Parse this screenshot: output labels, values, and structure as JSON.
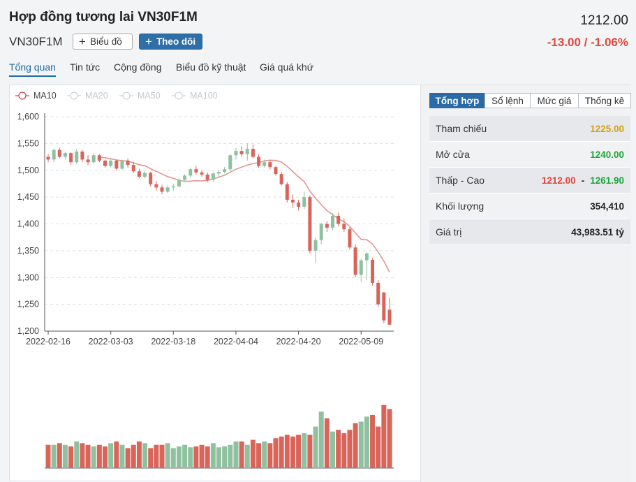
{
  "header": {
    "title": "Hợp đồng tương lai VN30F1M",
    "price": "1212.00",
    "symbol": "VN30F1M",
    "change": "-13.00 / -1.06%",
    "change_color": "#e2473c",
    "btn_chart": "Biểu đồ",
    "btn_follow": "Theo dõi"
  },
  "tabs": [
    "Tổng quan",
    "Tin tức",
    "Cộng đồng",
    "Biểu đồ kỹ thuật",
    "Giá quá khứ"
  ],
  "sidebar": {
    "tabs": [
      "Tổng hợp",
      "Sổ lệnh",
      "Mức giá",
      "Thống kê"
    ],
    "rows": [
      {
        "label": "Tham chiếu",
        "value": "1225.00"
      },
      {
        "label": "Mở cửa",
        "value": "1240.00"
      },
      {
        "label": "Thấp - Cao",
        "low": "1212.00",
        "high": "1261.90"
      },
      {
        "label": "Khối lượng",
        "value": "354,410"
      },
      {
        "label": "Giá trị",
        "value": "43,983.51 tỷ"
      }
    ]
  },
  "chart_data": {
    "type": "candlestick",
    "legend": [
      "MA10",
      "MA20",
      "MA50",
      "MA100"
    ],
    "legend_active": [
      true,
      false,
      false,
      false
    ],
    "ylim": [
      1200,
      1600
    ],
    "yticks": [
      "1,600",
      "1,550",
      "1,500",
      "1,450",
      "1,400",
      "1,350",
      "1,300",
      "1,250",
      "1,200"
    ],
    "xticks": [
      "2022-02-16",
      "2022-03-03",
      "2022-03-18",
      "2022-04-04",
      "2022-04-20",
      "2022-05-09"
    ],
    "xtick_index": [
      0,
      11,
      22,
      33,
      44,
      55
    ],
    "up_color": "#8fc1a0",
    "down_color": "#d9645a",
    "ma_color": "#e3958f",
    "candles": [
      [
        1525,
        1530,
        1515,
        1520
      ],
      [
        1520,
        1540,
        1515,
        1538
      ],
      [
        1538,
        1542,
        1522,
        1525
      ],
      [
        1525,
        1535,
        1520,
        1532
      ],
      [
        1532,
        1534,
        1510,
        1515
      ],
      [
        1515,
        1540,
        1512,
        1535
      ],
      [
        1535,
        1538,
        1515,
        1520
      ],
      [
        1520,
        1528,
        1510,
        1515
      ],
      [
        1515,
        1532,
        1512,
        1528
      ],
      [
        1528,
        1530,
        1515,
        1518
      ],
      [
        1518,
        1520,
        1505,
        1508
      ],
      [
        1508,
        1522,
        1505,
        1518
      ],
      [
        1518,
        1520,
        1500,
        1503
      ],
      [
        1503,
        1520,
        1500,
        1518
      ],
      [
        1518,
        1522,
        1505,
        1510
      ],
      [
        1510,
        1516,
        1495,
        1498
      ],
      [
        1498,
        1503,
        1485,
        1488
      ],
      [
        1488,
        1498,
        1485,
        1495
      ],
      [
        1495,
        1497,
        1470,
        1474
      ],
      [
        1474,
        1480,
        1462,
        1468
      ],
      [
        1468,
        1473,
        1455,
        1460
      ],
      [
        1460,
        1472,
        1458,
        1468
      ],
      [
        1468,
        1475,
        1462,
        1470
      ],
      [
        1470,
        1485,
        1468,
        1482
      ],
      [
        1482,
        1493,
        1478,
        1490
      ],
      [
        1490,
        1505,
        1486,
        1502
      ],
      [
        1502,
        1508,
        1492,
        1496
      ],
      [
        1496,
        1500,
        1488,
        1492
      ],
      [
        1492,
        1496,
        1478,
        1482
      ],
      [
        1482,
        1496,
        1478,
        1494
      ],
      [
        1494,
        1500,
        1488,
        1497
      ],
      [
        1497,
        1506,
        1494,
        1502
      ],
      [
        1502,
        1530,
        1498,
        1528
      ],
      [
        1528,
        1542,
        1520,
        1536
      ],
      [
        1536,
        1545,
        1525,
        1530
      ],
      [
        1530,
        1550,
        1518,
        1540
      ],
      [
        1540,
        1548,
        1522,
        1525
      ],
      [
        1525,
        1530,
        1505,
        1508
      ],
      [
        1508,
        1520,
        1505,
        1515
      ],
      [
        1515,
        1520,
        1502,
        1506
      ],
      [
        1506,
        1508,
        1490,
        1493
      ],
      [
        1493,
        1497,
        1472,
        1474
      ],
      [
        1474,
        1478,
        1440,
        1445
      ],
      [
        1445,
        1455,
        1430,
        1440
      ],
      [
        1440,
        1445,
        1425,
        1432
      ],
      [
        1432,
        1460,
        1428,
        1450
      ],
      [
        1450,
        1453,
        1345,
        1350
      ],
      [
        1350,
        1375,
        1327,
        1370
      ],
      [
        1370,
        1402,
        1362,
        1400
      ],
      [
        1400,
        1405,
        1385,
        1393
      ],
      [
        1393,
        1420,
        1388,
        1415
      ],
      [
        1415,
        1421,
        1395,
        1400
      ],
      [
        1400,
        1410,
        1385,
        1390
      ],
      [
        1390,
        1394,
        1352,
        1356
      ],
      [
        1356,
        1362,
        1300,
        1305
      ],
      [
        1305,
        1335,
        1292,
        1332
      ],
      [
        1332,
        1348,
        1295,
        1345
      ],
      [
        1333,
        1336,
        1285,
        1290
      ],
      [
        1290,
        1295,
        1245,
        1250
      ],
      [
        1272,
        1273,
        1215,
        1220
      ],
      [
        1240,
        1262,
        1212,
        1212
      ]
    ],
    "volume": [
      28,
      28,
      30,
      28,
      26,
      32,
      30,
      28,
      26,
      28,
      26,
      30,
      32,
      28,
      24,
      28,
      32,
      30,
      24,
      28,
      28,
      30,
      24,
      26,
      28,
      25,
      26,
      28,
      26,
      30,
      25,
      26,
      28,
      32,
      32,
      28,
      34,
      30,
      32,
      30,
      36,
      38,
      40,
      38,
      40,
      42,
      40,
      50,
      68,
      60,
      44,
      46,
      42,
      46,
      54,
      56,
      62,
      64,
      50,
      76,
      71
    ]
  }
}
